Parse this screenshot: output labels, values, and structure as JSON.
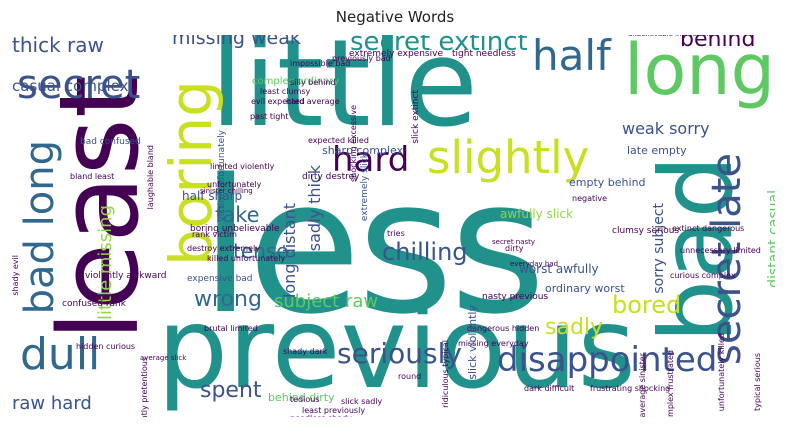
{
  "title": "Negative Words",
  "palette": {
    "dark_purple": "#440154",
    "indigo": "#3b528b",
    "blue": "#31688e",
    "teal": "#21918c",
    "green": "#35b779",
    "light_green": "#5ec962",
    "lime": "#90d743",
    "yellow": "#c8e020"
  },
  "words": [
    "less",
    "previous",
    "little",
    "least",
    "bad",
    "long",
    "boring",
    "slightly",
    "hard",
    "secret",
    "half",
    "bad long",
    "secret late",
    "dull",
    "disappointed",
    "seriously",
    "secret extinct",
    "thick raw",
    "missing weak",
    "behind",
    "chilling",
    "little missing",
    "fake",
    "tense",
    "wrong",
    "subject raw",
    "spent",
    "sadly",
    "bored",
    "raw hard",
    "sadly thick",
    "long distant",
    "weak sorry",
    "sorry subject",
    "distant casual",
    "casual complex",
    "half sharp",
    "sharp complex",
    "late empty",
    "empty behind",
    "worst awfully",
    "awfully slick",
    "ordinary worst",
    "behind dirty",
    "complex ordinary",
    "extremely expensive",
    "tight needless",
    "impossible bad",
    "silly behind",
    "least clumsy",
    "hard average",
    "evil expected",
    "past tight",
    "bad confused",
    "sinister chilling",
    "victim unfortunately",
    "limited violently",
    "expected killed",
    "extremely slick",
    "slick extinct",
    "dirty destroy",
    "boring unbelievable",
    "rank victim",
    "destroy extremely",
    "killed unfortunately",
    "expensive bad",
    "violently awkward",
    "confused rank",
    "brutal limited",
    "unbelievable impossible",
    "extinct dangerous",
    "unnecessary limited",
    "curious complex",
    "dangerous hidden",
    "nasty previous",
    "missing everyday",
    "slick violently",
    "slick sadly",
    "needless shady",
    "unfortunately unnecessary",
    "excessive ridiculous",
    "bad mean",
    "awkward secret",
    "serious expected",
    "difficult due",
    "frustrating shocking",
    "complex frustrated",
    "unfortunately killed",
    "average sinister",
    "typical serious",
    "clumsy serious",
    "secret nasty",
    "everyday bad",
    "laughable bland",
    "bland least",
    "hidden curious",
    "slightly pretentious",
    "least previously",
    "shocking excessive",
    "previously bad",
    "shady dark",
    "dark difficult",
    "round",
    "tries",
    "tedious",
    "average slick",
    "shady evil",
    "ridiculous typical",
    "unfortunately",
    "dirty",
    "negative"
  ]
}
